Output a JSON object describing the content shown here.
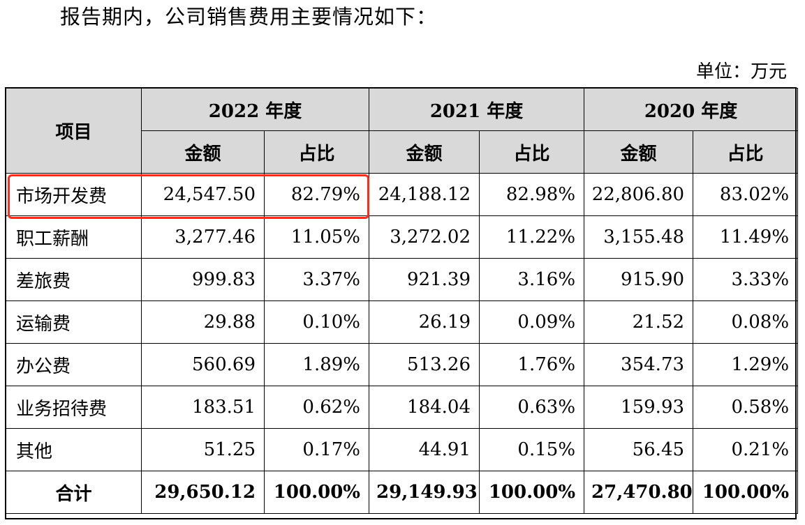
{
  "intro_text": "报告期内，公司销售费用主要情况如下：",
  "unit_label": "单位：万元",
  "highlight_color": "#ff2a1a",
  "header_bg_color": "#d9d9d9",
  "table": {
    "item_header": "项目",
    "years": [
      "2022 年度",
      "2021 年度",
      "2020 年度"
    ],
    "sub_headers": [
      "金额",
      "占比"
    ],
    "rows": [
      {
        "name": "市场开发费",
        "values": [
          "24,547.50",
          "82.79%",
          "24,188.12",
          "82.98%",
          "22,806.80",
          "83.02%"
        ],
        "highlighted": true
      },
      {
        "name": "职工薪酬",
        "values": [
          "3,277.46",
          "11.05%",
          "3,272.02",
          "11.22%",
          "3,155.48",
          "11.49%"
        ]
      },
      {
        "name": "差旅费",
        "values": [
          "999.83",
          "3.37%",
          "921.39",
          "3.16%",
          "915.90",
          "3.33%"
        ]
      },
      {
        "name": "运输费",
        "values": [
          "29.88",
          "0.10%",
          "26.19",
          "0.09%",
          "21.52",
          "0.08%"
        ]
      },
      {
        "name": "办公费",
        "values": [
          "560.69",
          "1.89%",
          "513.26",
          "1.76%",
          "354.73",
          "1.29%"
        ]
      },
      {
        "name": "业务招待费",
        "values": [
          "183.51",
          "0.62%",
          "184.04",
          "0.63%",
          "159.93",
          "0.58%"
        ]
      },
      {
        "name": "其他",
        "values": [
          "51.25",
          "0.17%",
          "44.91",
          "0.15%",
          "56.45",
          "0.21%"
        ]
      }
    ],
    "total": {
      "name": "合计",
      "values": [
        "29,650.12",
        "100.00%",
        "29,149.93",
        "100.00%",
        "27,470.80",
        "100.00%"
      ]
    }
  }
}
